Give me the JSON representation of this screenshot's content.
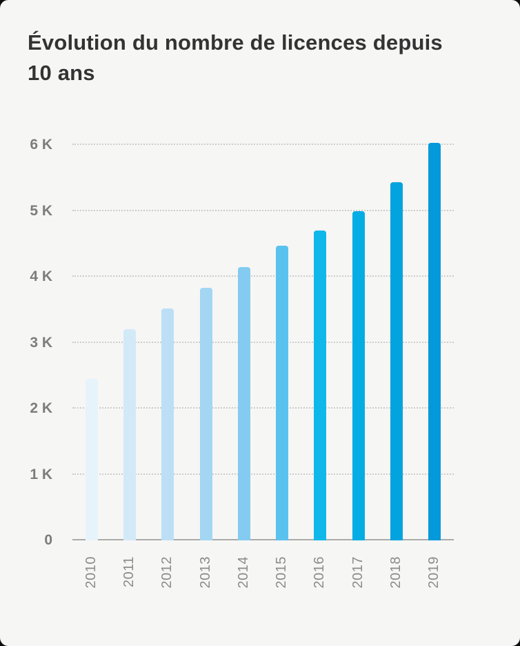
{
  "title": "Évolution du nombre de licences depuis 10 ans",
  "card": {
    "background": "#f6f6f5",
    "outer_background": "#0d0d0d",
    "title_color": "#333333"
  },
  "chart_data": {
    "type": "bar",
    "title": "Évolution du nombre de licences depuis 10 ans",
    "xlabel": "",
    "ylabel": "",
    "categories": [
      "2010",
      "2011",
      "2012",
      "2013",
      "2014",
      "2015",
      "2016",
      "2017",
      "2018",
      "2019"
    ],
    "values": [
      2450,
      3200,
      3520,
      3830,
      4150,
      4470,
      4700,
      5000,
      5430,
      6030
    ],
    "ylim": [
      0,
      6000
    ],
    "ytick_values": [
      0,
      1000,
      2000,
      3000,
      4000,
      5000,
      6000
    ],
    "ytick_labels": [
      "0",
      "1 K",
      "2 K",
      "3 K",
      "4 K",
      "5 K",
      "6 K"
    ],
    "grid": "horizontal-dotted",
    "legend": "none",
    "bar_colors": [
      "#e7f3fb",
      "#d2e9f8",
      "#bcdff6",
      "#a3d6f3",
      "#83cbf0",
      "#5ac2ee",
      "#10b8e9",
      "#05ade4",
      "#03a3df",
      "#0499da"
    ],
    "gridline_color": "#cccccc",
    "axis_line_color": "#aaaaaa",
    "y_label_color": "#7c7c7c",
    "x_label_color": "#8b8b8b",
    "x_label_rotation_deg": -90
  }
}
